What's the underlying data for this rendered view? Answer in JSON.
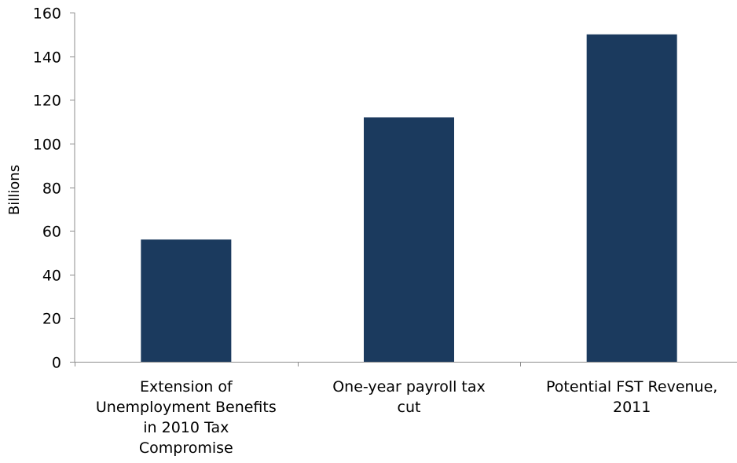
{
  "chart_data": {
    "type": "bar",
    "title": "",
    "xlabel": "",
    "ylabel": "Billions",
    "ylim": [
      0,
      160
    ],
    "yticks": [
      0,
      20,
      40,
      60,
      80,
      100,
      120,
      140,
      160
    ],
    "grid": false,
    "legend": "none",
    "categories": [
      "Extension of Unemployment Benefits in 2010 Tax Compromise",
      "One-year payroll tax cut",
      "Potential FST Revenue, 2011"
    ],
    "category_label_lines": [
      [
        "Extension of",
        "Unemployment Benefits",
        "in 2010 Tax",
        "Compromise"
      ],
      [
        "One-year payroll tax",
        "cut"
      ],
      [
        "Potential FST Revenue,",
        "2011"
      ]
    ],
    "values": [
      56,
      112,
      150
    ],
    "bar_color": "#1b3a5e",
    "axis_color": "#8c8c8c"
  }
}
